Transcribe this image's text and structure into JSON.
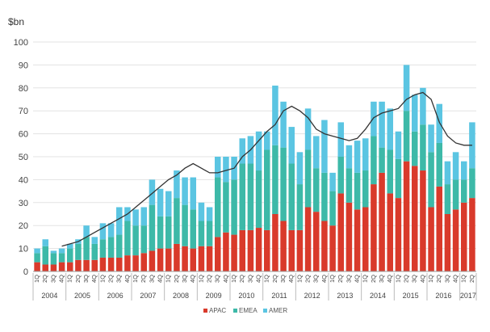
{
  "chart_data": {
    "type": "bar",
    "stacked": true,
    "title": "",
    "unit_label": "$bn",
    "xlabel": "",
    "ylabel": "",
    "ylim": [
      0,
      100
    ],
    "y_ticks": [
      0,
      10,
      20,
      30,
      40,
      50,
      60,
      70,
      80,
      90,
      100
    ],
    "grid": true,
    "legend_position": "bottom-center",
    "categories": [
      "1Q",
      "2Q",
      "3Q",
      "4Q",
      "1Q",
      "2Q",
      "3Q",
      "4Q",
      "1Q",
      "2Q",
      "3Q",
      "4Q",
      "1Q",
      "2Q",
      "3Q",
      "4Q",
      "1Q",
      "2Q",
      "3Q",
      "4Q",
      "1Q",
      "2Q",
      "3Q",
      "4Q",
      "1Q",
      "2Q",
      "3Q",
      "4Q",
      "1Q",
      "2Q",
      "3Q",
      "4Q",
      "1Q",
      "2Q",
      "3Q",
      "4Q",
      "1Q",
      "2Q",
      "3Q",
      "4Q",
      "1Q",
      "2Q",
      "3Q",
      "4Q",
      "1Q",
      "2Q",
      "3Q",
      "4Q",
      "1Q",
      "2Q",
      "3Q",
      "4Q",
      "1Q",
      "2Q"
    ],
    "year_groups": [
      {
        "label": "2004",
        "count": 4
      },
      {
        "label": "2005",
        "count": 4
      },
      {
        "label": "2006",
        "count": 4
      },
      {
        "label": "2007",
        "count": 4
      },
      {
        "label": "2008",
        "count": 4
      },
      {
        "label": "2009",
        "count": 4
      },
      {
        "label": "2010",
        "count": 4
      },
      {
        "label": "2011",
        "count": 4
      },
      {
        "label": "2012",
        "count": 4
      },
      {
        "label": "2013",
        "count": 4
      },
      {
        "label": "2014",
        "count": 4
      },
      {
        "label": "2015",
        "count": 4
      },
      {
        "label": "2016",
        "count": 4
      },
      {
        "label": "2017",
        "count": 2
      }
    ],
    "series": [
      {
        "name": "APAC",
        "color": "#d93a2b",
        "values": [
          4,
          3,
          3,
          4,
          4,
          5,
          5,
          5,
          6,
          6,
          6,
          7,
          7,
          8,
          9,
          10,
          10,
          12,
          11,
          10,
          11,
          11,
          15,
          17,
          16,
          18,
          18,
          19,
          18,
          25,
          22,
          18,
          18,
          28,
          26,
          22,
          20,
          34,
          30,
          27,
          28,
          38,
          43,
          34,
          32,
          48,
          46,
          44,
          28,
          37,
          25,
          27,
          30,
          32
        ]
      },
      {
        "name": "EMEA",
        "color": "#3db9a8",
        "values": [
          4,
          8,
          5,
          4,
          6,
          7,
          10,
          7,
          8,
          9,
          10,
          15,
          13,
          12,
          20,
          14,
          14,
          20,
          18,
          17,
          11,
          11,
          26,
          22,
          24,
          29,
          29,
          25,
          35,
          30,
          32,
          29,
          20,
          25,
          19,
          21,
          15,
          16,
          15,
          16,
          16,
          21,
          11,
          19,
          17,
          22,
          15,
          20,
          24,
          19,
          13,
          13,
          10,
          13
        ]
      },
      {
        "name": "AMER",
        "color": "#5bc5e2",
        "values": [
          2,
          3,
          1,
          2,
          2,
          2,
          5,
          3,
          7,
          6,
          12,
          6,
          7,
          8,
          11,
          12,
          11,
          12,
          12,
          14,
          8,
          6,
          9,
          11,
          10,
          11,
          12,
          17,
          8,
          26,
          20,
          16,
          14,
          18,
          14,
          23,
          8,
          15,
          10,
          14,
          14,
          15,
          20,
          18,
          12,
          20,
          16,
          16,
          12,
          17,
          10,
          12,
          8,
          20
        ]
      }
    ],
    "trend_line": {
      "color": "#333333",
      "values": [
        null,
        null,
        null,
        11,
        12,
        13,
        15,
        17,
        19,
        21,
        23,
        25,
        28,
        31,
        34,
        37,
        40,
        42,
        45,
        47,
        45,
        43,
        43,
        44,
        45,
        50,
        53,
        57,
        61,
        64,
        70,
        72,
        70,
        67,
        62,
        60,
        59,
        58,
        57,
        58,
        62,
        67,
        69,
        70,
        71,
        75,
        77,
        78,
        75,
        65,
        59,
        56,
        55,
        55
      ]
    }
  }
}
